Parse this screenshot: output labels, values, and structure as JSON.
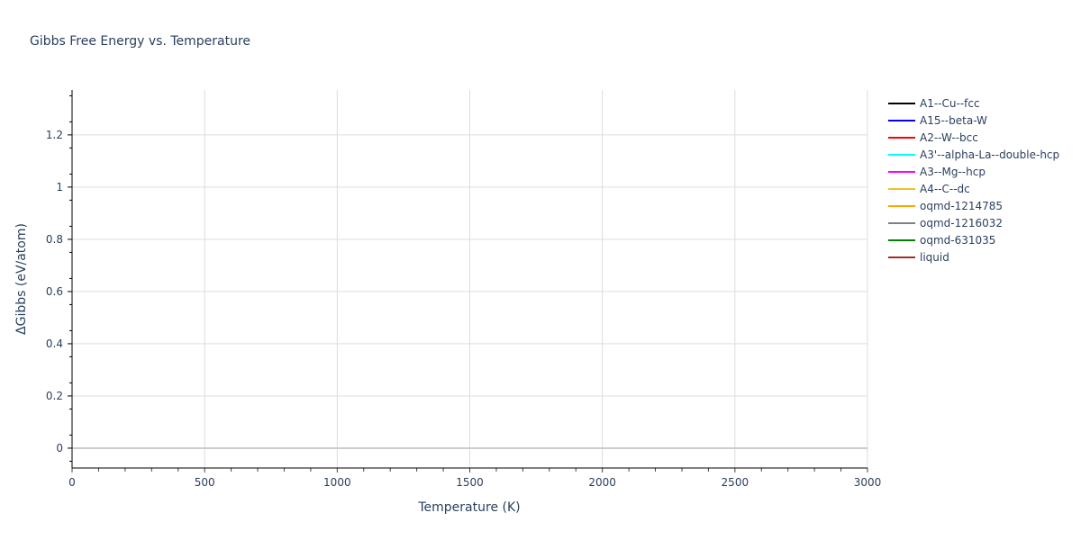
{
  "chart_data": {
    "type": "line",
    "title": "Gibbs Free Energy vs. Temperature",
    "xlabel": "Temperature (K)",
    "ylabel": "ΔGibbs (eV/atom)",
    "xlim": [
      0,
      3000
    ],
    "ylim": [
      -0.076,
      1.372
    ],
    "xticks": [
      0,
      500,
      1000,
      1500,
      2000,
      2500,
      3000
    ],
    "xtick_labels": [
      "0",
      "500",
      "1000",
      "1500",
      "2000",
      "2500",
      "3000"
    ],
    "yticks": [
      0,
      0.2,
      0.4,
      0.6,
      0.8,
      1,
      1.2
    ],
    "ytick_labels": [
      "0",
      "0.2",
      "0.4",
      "0.6",
      "0.8",
      "1",
      "1.2"
    ],
    "grid": true,
    "legend_placement": "right",
    "series": [
      {
        "name": "A1--Cu--fcc",
        "color": "#000000",
        "x": [],
        "y": []
      },
      {
        "name": "A15--beta-W",
        "color": "#0000ff",
        "x": [],
        "y": []
      },
      {
        "name": "A2--W--bcc",
        "color": "#ff0000",
        "x": [],
        "y": []
      },
      {
        "name": "A3'--alpha-La--double-hcp",
        "color": "#00ffff",
        "x": [],
        "y": []
      },
      {
        "name": "A3--Mg--hcp",
        "color": "#ff00ff",
        "x": [],
        "y": []
      },
      {
        "name": "A4--C--dc",
        "color": "#f0c030",
        "x": [],
        "y": []
      },
      {
        "name": "oqmd-1214785",
        "color": "#ffa500",
        "x": [],
        "y": []
      },
      {
        "name": "oqmd-1216032",
        "color": "#808080",
        "x": [],
        "y": []
      },
      {
        "name": "oqmd-631035",
        "color": "#008000",
        "x": [],
        "y": []
      },
      {
        "name": "liquid",
        "color": "#a52a2a",
        "x": [],
        "y": []
      }
    ]
  }
}
